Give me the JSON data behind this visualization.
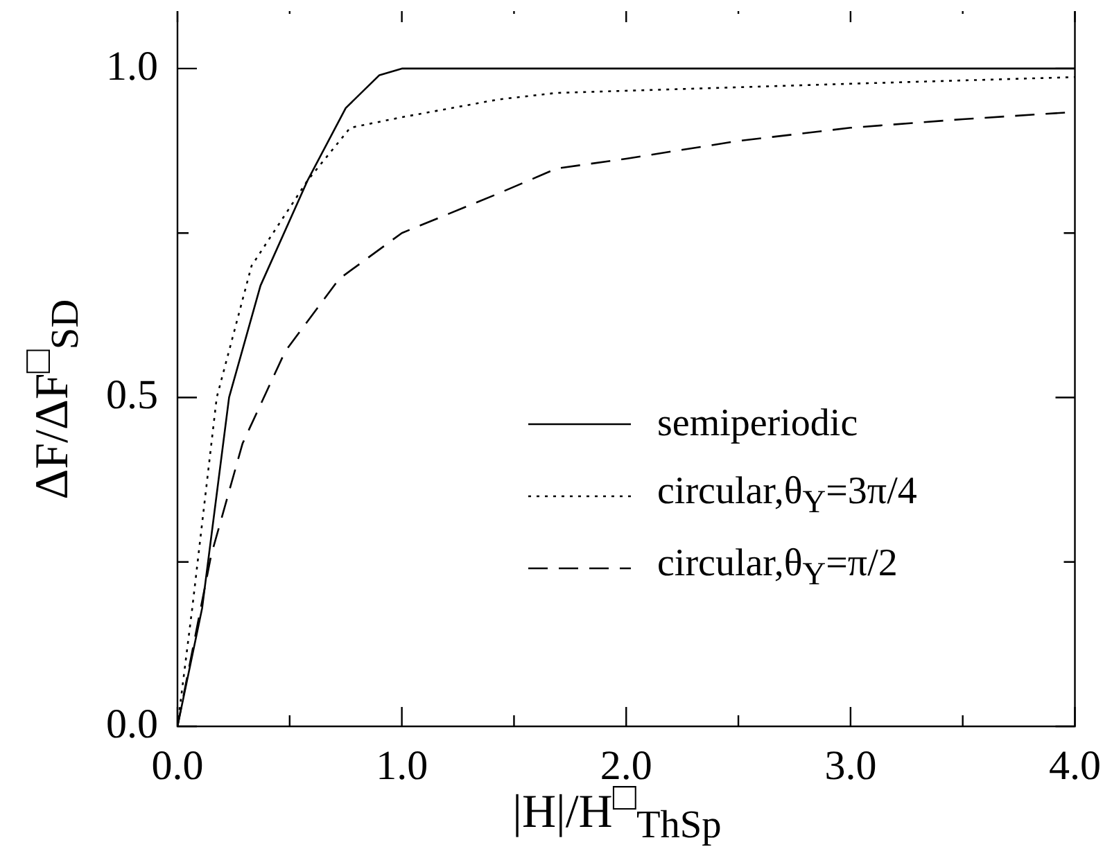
{
  "chart_data": {
    "type": "line",
    "xlabel": "|H|/H$^{□}$$_{ThSp}$",
    "ylabel": "ΔF/ΔF$^{□}$$_{SD}$",
    "xlim": [
      0,
      4
    ],
    "ylim": [
      0,
      1.1
    ],
    "xticks": [
      {
        "value": 0,
        "label": "0.0"
      },
      {
        "value": 0.5,
        "label": null
      },
      {
        "value": 1,
        "label": "1.0"
      },
      {
        "value": 1.5,
        "label": null
      },
      {
        "value": 2,
        "label": "2.0"
      },
      {
        "value": 2.5,
        "label": null
      },
      {
        "value": 3,
        "label": "3.0"
      },
      {
        "value": 3.5,
        "label": null
      },
      {
        "value": 4,
        "label": "4.0"
      }
    ],
    "yticks": [
      {
        "value": 0,
        "label": "0.0"
      },
      {
        "value": 0.25,
        "label": null
      },
      {
        "value": 0.5,
        "label": "0.5"
      },
      {
        "value": 0.75,
        "label": null
      },
      {
        "value": 1,
        "label": "1.0"
      }
    ],
    "grid": false,
    "legend": "right",
    "marker": "none",
    "series": [
      {
        "name": "semiperiodic",
        "color": "#000000",
        "line_style": "solid",
        "x": [
          0,
          0.11,
          0.23,
          0.37,
          0.58,
          0.75,
          0.9,
          1,
          2,
          3,
          4
        ],
        "values": [
          0,
          0.18,
          0.5,
          0.67,
          0.83,
          0.94,
          0.99,
          1,
          1,
          1,
          1
        ]
      },
      {
        "name": "circular,θ$_{Y}$=3π/4",
        "color": "#000000",
        "line_style": "dotted",
        "x": [
          0,
          0.066,
          0.175,
          0.33,
          0.58,
          0.77,
          1,
          1.43,
          1.69,
          2.91,
          4
        ],
        "values": [
          0,
          0.18,
          0.5,
          0.7,
          0.83,
          0.91,
          0.926,
          0.953,
          0.963,
          0.976,
          0.987
        ]
      },
      {
        "name": "circular,θ$_{Y}$=π/2",
        "color": "#000000",
        "line_style": "dashed",
        "x": [
          0,
          0.15,
          0.29,
          0.48,
          0.72,
          1,
          1.43,
          1.69,
          2,
          2.5,
          3,
          3.5,
          4
        ],
        "values": [
          0,
          0.26,
          0.43,
          0.57,
          0.68,
          0.75,
          0.81,
          0.848,
          0.863,
          0.89,
          0.91,
          0.923,
          0.934
        ]
      }
    ]
  }
}
